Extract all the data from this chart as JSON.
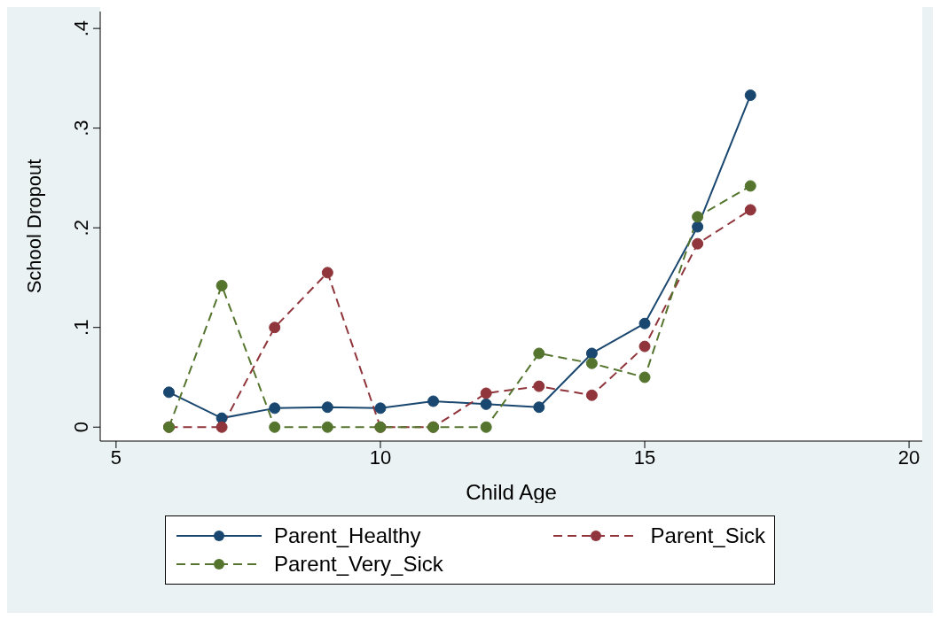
{
  "chart_data": {
    "type": "line",
    "xlabel": "Child Age",
    "ylabel": "School Dropout",
    "x": [
      6,
      7,
      8,
      9,
      10,
      11,
      12,
      13,
      14,
      15,
      16,
      17
    ],
    "series": [
      {
        "name": "Parent_Healthy",
        "color": "#1a476f",
        "line_style": "solid",
        "values": [
          0.035,
          0.009,
          0.019,
          0.02,
          0.019,
          0.026,
          0.023,
          0.02,
          0.074,
          0.104,
          0.201,
          0.333
        ]
      },
      {
        "name": "Parent_Sick",
        "color": "#90353b",
        "line_style": "dashed",
        "values": [
          0,
          0,
          0.1,
          0.155,
          0,
          0,
          0.034,
          0.041,
          0.032,
          0.081,
          0.184,
          0.218
        ]
      },
      {
        "name": "Parent_Very_Sick",
        "color": "#55752f",
        "line_style": "dashed",
        "values": [
          0,
          0.142,
          0,
          0,
          0,
          0,
          0,
          0.074,
          0.064,
          0.05,
          0.211,
          0.242
        ]
      }
    ],
    "marker": "circle",
    "legend": "bottom",
    "xlim": [
      4.7,
      20.25
    ],
    "xticks": [
      5,
      10,
      15,
      20
    ],
    "ylim": [
      -0.014,
      0.417
    ],
    "yticks": [
      0,
      {
        "value": 0.1,
        "label": ".1"
      },
      {
        "value": 0.2,
        "label": ".2"
      },
      {
        "value": 0.3,
        "label": ".3"
      },
      {
        "value": 0.4,
        "label": ".4"
      }
    ]
  }
}
